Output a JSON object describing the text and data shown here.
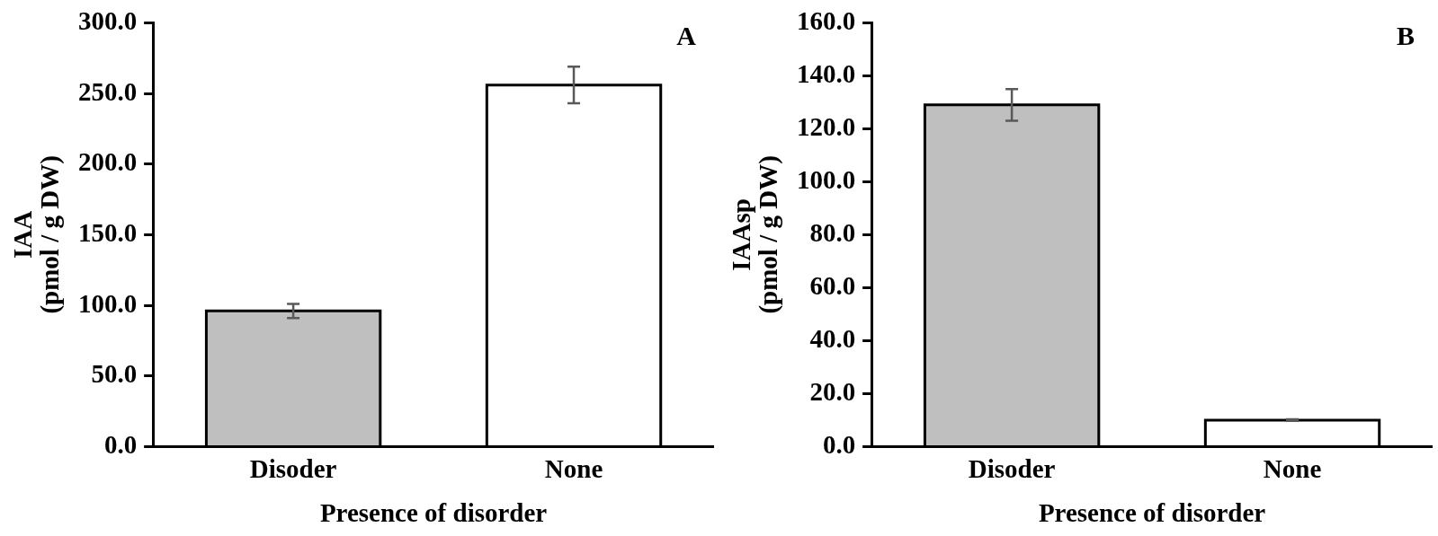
{
  "chart_data": [
    {
      "type": "bar",
      "categories": [
        "Disoder",
        "None"
      ],
      "values": [
        96,
        256
      ],
      "errors": [
        5,
        13
      ],
      "colors": [
        "#bfbfbf",
        "#ffffff"
      ],
      "xlabel": "Presence of disorder",
      "ylabel": "IAA\n(pmol / g DW)",
      "ylim": [
        0,
        300
      ],
      "yticks": [
        {
          "value": 0,
          "label": "0.0"
        },
        {
          "value": 50,
          "label": "50.0"
        },
        {
          "value": 100,
          "label": "100.0"
        },
        {
          "value": 150,
          "label": "150.0"
        },
        {
          "value": 200,
          "label": "200.0"
        },
        {
          "value": 250,
          "label": "250.0"
        },
        {
          "value": 300,
          "label": "300.0"
        }
      ],
      "annotations": [
        "A"
      ],
      "grid": false,
      "legend": false
    },
    {
      "type": "bar",
      "categories": [
        "Disoder",
        "None"
      ],
      "values": [
        129,
        10
      ],
      "errors": [
        6,
        0.3
      ],
      "colors": [
        "#bfbfbf",
        "#ffffff"
      ],
      "xlabel": "Presence of disorder",
      "ylabel": "IAAsp\n(pmol / g DW)",
      "ylim": [
        0,
        160
      ],
      "yticks": [
        {
          "value": 0,
          "label": "0.0"
        },
        {
          "value": 20,
          "label": "20.0"
        },
        {
          "value": 40,
          "label": "40.0"
        },
        {
          "value": 60,
          "label": "60.0"
        },
        {
          "value": 80,
          "label": "80.0"
        },
        {
          "value": 100,
          "label": "100.0"
        },
        {
          "value": 120,
          "label": "120.0"
        },
        {
          "value": 140,
          "label": "140.0"
        },
        {
          "value": 160,
          "label": "160.0"
        }
      ],
      "annotations": [
        "B"
      ],
      "grid": false,
      "legend": false
    }
  ]
}
